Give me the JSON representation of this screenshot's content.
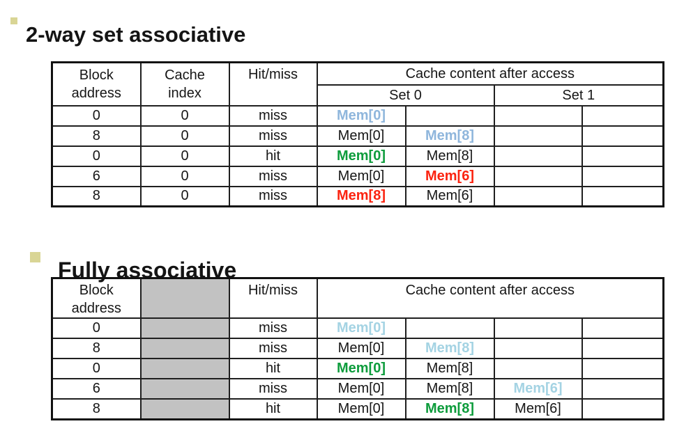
{
  "sections": [
    {
      "title": "2-way set associative"
    },
    {
      "title": "Fully associative"
    }
  ],
  "colors": {
    "new_entry_2way": "#8fb6dc",
    "new_entry_fully": "#a4d3e3",
    "hit_green": "#0d9c3c",
    "replace_red": "#fb2310",
    "gray_cell": "#c2c2c2",
    "bullet": "#d9d595",
    "border": "#111111"
  },
  "table_2way": {
    "header": {
      "block_line1": "Block",
      "block_line2": "address",
      "cache_line1": "Cache",
      "cache_line2": "index",
      "hitmiss": "Hit/miss",
      "content": "Cache content after access",
      "set0": "Set 0",
      "set1": "Set 1"
    },
    "variant_color_keys": {
      "new": "new_entry_2way",
      "hit": "hit_green",
      "replace": "replace_red"
    },
    "rows": [
      {
        "block": "0",
        "index": "0",
        "hitmiss": "miss",
        "content": [
          {
            "text": "Mem[0]",
            "variant": "new"
          },
          {
            "text": ""
          },
          {
            "text": ""
          },
          {
            "text": ""
          }
        ]
      },
      {
        "block": "8",
        "index": "0",
        "hitmiss": "miss",
        "content": [
          {
            "text": "Mem[0]"
          },
          {
            "text": "Mem[8]",
            "variant": "new"
          },
          {
            "text": ""
          },
          {
            "text": ""
          }
        ]
      },
      {
        "block": "0",
        "index": "0",
        "hitmiss": "hit",
        "content": [
          {
            "text": "Mem[0]",
            "variant": "hit"
          },
          {
            "text": "Mem[8]"
          },
          {
            "text": ""
          },
          {
            "text": ""
          }
        ]
      },
      {
        "block": "6",
        "index": "0",
        "hitmiss": "miss",
        "content": [
          {
            "text": "Mem[0]"
          },
          {
            "text": "Mem[6]",
            "variant": "replace"
          },
          {
            "text": ""
          },
          {
            "text": ""
          }
        ]
      },
      {
        "block": "8",
        "index": "0",
        "hitmiss": "miss",
        "content": [
          {
            "text": "Mem[8]",
            "variant": "replace"
          },
          {
            "text": "Mem[6]"
          },
          {
            "text": ""
          },
          {
            "text": ""
          }
        ]
      }
    ]
  },
  "table_fully": {
    "header": {
      "block_line1": "Block",
      "block_line2": "address",
      "hitmiss": "Hit/miss",
      "content": "Cache content after access"
    },
    "variant_color_keys": {
      "new": "new_entry_fully",
      "hit": "hit_green",
      "replace": "replace_red"
    },
    "rows": [
      {
        "block": "0",
        "hitmiss": "miss",
        "content": [
          {
            "text": "Mem[0]",
            "variant": "new"
          },
          {
            "text": ""
          },
          {
            "text": ""
          },
          {
            "text": ""
          }
        ]
      },
      {
        "block": "8",
        "hitmiss": "miss",
        "content": [
          {
            "text": "Mem[0]"
          },
          {
            "text": "Mem[8]",
            "variant": "new"
          },
          {
            "text": ""
          },
          {
            "text": ""
          }
        ]
      },
      {
        "block": "0",
        "hitmiss": "hit",
        "content": [
          {
            "text": "Mem[0]",
            "variant": "hit"
          },
          {
            "text": "Mem[8]"
          },
          {
            "text": ""
          },
          {
            "text": ""
          }
        ]
      },
      {
        "block": "6",
        "hitmiss": "miss",
        "content": [
          {
            "text": "Mem[0]"
          },
          {
            "text": "Mem[8]"
          },
          {
            "text": "Mem[6]",
            "variant": "new"
          },
          {
            "text": ""
          }
        ]
      },
      {
        "block": "8",
        "hitmiss": "hit",
        "content": [
          {
            "text": "Mem[0]"
          },
          {
            "text": "Mem[8]",
            "variant": "hit"
          },
          {
            "text": "Mem[6]"
          },
          {
            "text": ""
          }
        ]
      }
    ]
  }
}
